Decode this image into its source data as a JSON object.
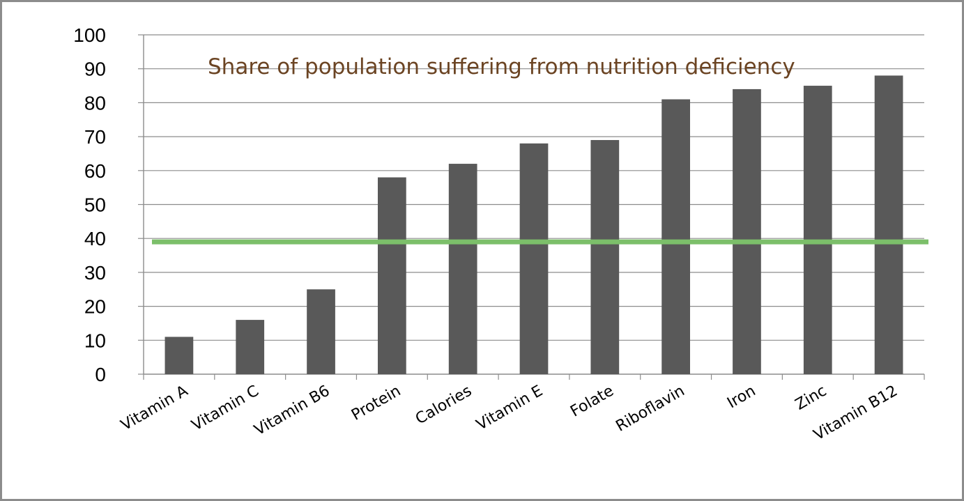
{
  "chart_data": {
    "type": "bar",
    "title": "Share of population suffering from nutrition deficiency",
    "xlabel": "",
    "ylabel": "",
    "categories": [
      "Vitamin A",
      "Vitamin C",
      "Vitamin B6",
      "Protein",
      "Calories",
      "Vitamin E",
      "Folate",
      "Riboflavin",
      "Iron",
      "Zinc",
      "Vitamin B12"
    ],
    "series": [
      {
        "values": [
          11,
          16,
          25,
          58,
          62,
          68,
          69,
          81,
          84,
          85,
          88
        ]
      }
    ],
    "ylim": [
      0,
      100
    ],
    "yticks": [
      "0",
      "10",
      "20",
      "30",
      "40",
      "50",
      "60",
      "70",
      "80",
      "90",
      "100"
    ],
    "grid": true,
    "legend": "none",
    "reference_line": {
      "value": 39
    },
    "colors": {
      "bar": "#595959",
      "reference_line": "#7cbf6a",
      "title": "#6b4423",
      "grid": "#8c8c8c"
    }
  }
}
